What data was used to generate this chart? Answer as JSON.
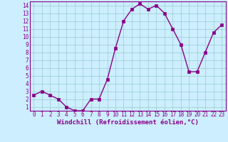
{
  "x": [
    0,
    1,
    2,
    3,
    4,
    5,
    6,
    7,
    8,
    9,
    10,
    11,
    12,
    13,
    14,
    15,
    16,
    17,
    18,
    19,
    20,
    21,
    22,
    23
  ],
  "y": [
    2.5,
    3.0,
    2.5,
    2.0,
    1.0,
    0.5,
    0.5,
    2.0,
    2.0,
    4.5,
    8.5,
    12.0,
    13.5,
    14.2,
    13.5,
    14.0,
    13.0,
    11.0,
    9.0,
    5.5,
    5.5,
    8.0,
    10.5,
    11.5
  ],
  "line_color": "#880088",
  "marker": "s",
  "marker_size": 2.2,
  "bg_color": "#cceeff",
  "grid_color": "#99cccc",
  "xlabel": "Windchill (Refroidissement éolien,°C)",
  "xlim": [
    -0.5,
    23.5
  ],
  "ylim": [
    0.5,
    14.5
  ],
  "yticks": [
    1,
    2,
    3,
    4,
    5,
    6,
    7,
    8,
    9,
    10,
    11,
    12,
    13,
    14
  ],
  "xticks": [
    0,
    1,
    2,
    3,
    4,
    5,
    6,
    7,
    8,
    9,
    10,
    11,
    12,
    13,
    14,
    15,
    16,
    17,
    18,
    19,
    20,
    21,
    22,
    23
  ],
  "tick_fontsize": 5.5,
  "xlabel_fontsize": 6.5,
  "xlabel_color": "#880088",
  "tick_color": "#880088",
  "spine_color": "#880088",
  "linewidth": 1.0
}
